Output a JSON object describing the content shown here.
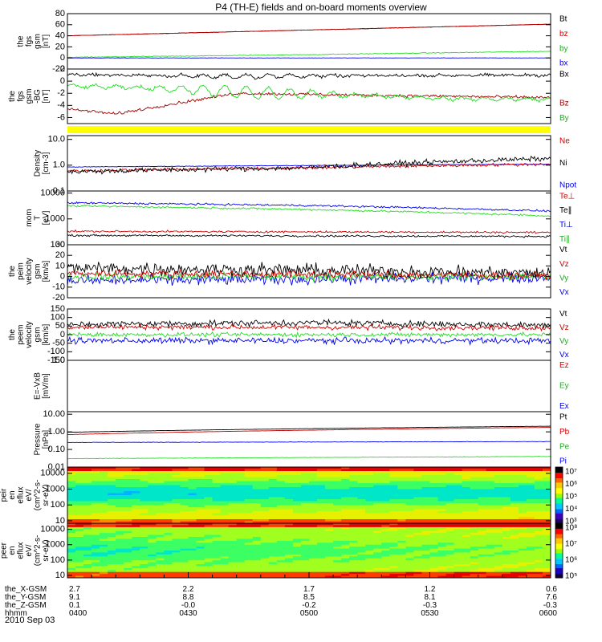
{
  "title": "P4 (TH-E) fields and on-board moments overview",
  "date": "2010 Sep 03",
  "colors": {
    "black": "#000000",
    "red": "#cc0000",
    "green": "#22dd22",
    "blue": "#0000ee",
    "yellow": "#ffff00",
    "darkred": "#a00000"
  },
  "chart_data": [
    {
      "type": "line",
      "ylabel": [
        "the",
        "fgs",
        "gsm",
        "[nT]"
      ],
      "ylim": [
        -20,
        80
      ],
      "yticks": [
        "80",
        "60",
        "40",
        "20",
        "0",
        "-20"
      ],
      "ytick_values": [
        80,
        60,
        40,
        20,
        0,
        -20
      ],
      "legend": [
        {
          "name": "Bt",
          "color": "#000000"
        },
        {
          "name": "bz",
          "color": "#cc0000"
        },
        {
          "name": "by",
          "color": "#22aa22"
        },
        {
          "name": "bx",
          "color": "#0000ee"
        }
      ],
      "series": [
        {
          "name": "Bt",
          "color": "#000000",
          "x": [
            0,
            1
          ],
          "y": [
            40,
            61
          ],
          "noise": 0.3
        },
        {
          "name": "bz",
          "color": "#cc0000",
          "x": [
            0,
            1
          ],
          "y": [
            40,
            61
          ],
          "noise": 0.3
        },
        {
          "name": "by",
          "color": "#22dd22",
          "x": [
            0,
            0.5,
            1
          ],
          "y": [
            1,
            6,
            12
          ],
          "noise": 0.6
        },
        {
          "name": "bx",
          "color": "#0000ee",
          "x": [
            0,
            1
          ],
          "y": [
            0,
            0
          ],
          "noise": 0.2
        }
      ]
    },
    {
      "type": "line",
      "ylabel": [
        "the",
        "fgs",
        "gsm",
        "-BG",
        "[nT]"
      ],
      "ylim": [
        -7,
        2
      ],
      "yticks": [
        "2",
        "0",
        "-2",
        "-4",
        "-6"
      ],
      "ytick_values": [
        2,
        0,
        -2,
        -4,
        -6
      ],
      "legend": [
        {
          "name": "Bx",
          "color": "#000000"
        },
        {
          "name": "",
          "color": "#ffffff"
        },
        {
          "name": "Bz",
          "color": "#a00000"
        },
        {
          "name": "By",
          "color": "#22aa22"
        }
      ],
      "series": [
        {
          "name": "Bx",
          "color": "#000000",
          "x": [
            0,
            0.3,
            0.6,
            1
          ],
          "y": [
            1.1,
            0.8,
            0.9,
            1.0
          ],
          "noise": 0.2,
          "wave": 0.3
        },
        {
          "name": "Bz",
          "color": "#a00000",
          "x": [
            0,
            0.1,
            0.2,
            0.35,
            0.6,
            0.8,
            1
          ],
          "y": [
            -4.6,
            -5.4,
            -4.0,
            -2.0,
            -2.3,
            -2.5,
            -2.7
          ],
          "noise": 0.2
        },
        {
          "name": "By",
          "color": "#22dd22",
          "x": [
            0,
            0.2,
            0.4,
            0.6,
            0.8,
            1
          ],
          "y": [
            -0.8,
            -1.2,
            -2.0,
            -2.3,
            -2.9,
            -3.0
          ],
          "noise": 0.2,
          "wave": 0.8
        }
      ],
      "bar": {
        "color": "#ffff00",
        "label_values": []
      }
    },
    {
      "type": "line",
      "scale": "log",
      "ylabel": [
        "Density",
        "[cm-3]"
      ],
      "ylim": [
        0.1,
        14
      ],
      "yticks": [
        "10.0",
        "1.0",
        "0.1"
      ],
      "ytick_values": [
        10,
        1,
        0.1
      ],
      "legend": [
        {
          "name": "Ne",
          "color": "#cc0000"
        },
        {
          "name": "Ni",
          "color": "#000000"
        },
        {
          "name": "Npot",
          "color": "#0000ee"
        }
      ],
      "series": [
        {
          "name": "Npot",
          "color": "#0000ee",
          "x": [
            0,
            1
          ],
          "y": [
            0.85,
            1.1
          ],
          "noise": 0.01
        },
        {
          "name": "Ne",
          "color": "#cc0000",
          "x": [
            0,
            0.5,
            1
          ],
          "y": [
            0.6,
            0.8,
            1.1
          ],
          "noise": 0.05
        },
        {
          "name": "Ni",
          "color": "#000000",
          "x": [
            0,
            0.5,
            1
          ],
          "y": [
            0.55,
            0.8,
            1.8
          ],
          "noise": 0.08
        }
      ]
    },
    {
      "type": "line",
      "scale": "log",
      "ylabel": [
        "mom",
        "T",
        "[eV]"
      ],
      "ylim": [
        100,
        12000
      ],
      "yticks": [
        "10000",
        "1000",
        "100"
      ],
      "ytick_values": [
        10000,
        1000,
        100
      ],
      "legend": [
        {
          "name": "Te⊥",
          "color": "#cc0000"
        },
        {
          "name": "Te∥",
          "color": "#000000"
        },
        {
          "name": "Ti⊥",
          "color": "#0000ee"
        },
        {
          "name": "Ti∥",
          "color": "#22aa22"
        }
      ],
      "series": [
        {
          "name": "Ti⊥",
          "color": "#0000ee",
          "x": [
            0,
            0.5,
            1
          ],
          "y": [
            4200,
            3300,
            2000
          ],
          "noise": 0.03
        },
        {
          "name": "Ti∥",
          "color": "#22dd22",
          "x": [
            0,
            0.5,
            1
          ],
          "y": [
            3200,
            2300,
            1300
          ],
          "noise": 0.03
        },
        {
          "name": "Te⊥",
          "color": "#cc0000",
          "x": [
            0,
            1
          ],
          "y": [
            330,
            300
          ],
          "noise": 0.03
        },
        {
          "name": "Te∥",
          "color": "#000000",
          "x": [
            0,
            1
          ],
          "y": [
            230,
            210
          ],
          "noise": 0.03
        }
      ]
    },
    {
      "type": "line",
      "ylabel": [
        "the",
        "peim",
        "velocity",
        "gsm",
        "[km/s]"
      ],
      "ylim": [
        -20,
        30
      ],
      "yticks": [
        "30",
        "20",
        "10",
        "0",
        "-10",
        "-20"
      ],
      "ytick_values": [
        30,
        20,
        10,
        0,
        -10,
        -20
      ],
      "legend": [
        {
          "name": "Vt",
          "color": "#000000"
        },
        {
          "name": "Vz",
          "color": "#cc0000"
        },
        {
          "name": "Vy",
          "color": "#22aa22"
        },
        {
          "name": "Vx",
          "color": "#0000ee"
        }
      ],
      "series": [
        {
          "name": "Vx",
          "color": "#0000ee",
          "x": [
            0,
            1
          ],
          "y": [
            -4,
            -1
          ],
          "noise": 4
        },
        {
          "name": "Vy",
          "color": "#22dd22",
          "x": [
            0,
            1
          ],
          "y": [
            0,
            0
          ],
          "noise": 3
        },
        {
          "name": "Vt",
          "color": "#000000",
          "x": [
            0,
            0.5,
            1
          ],
          "y": [
            8,
            6,
            3
          ],
          "noise": 5
        },
        {
          "name": "Vz",
          "color": "#cc0000",
          "x": [
            0,
            1
          ],
          "y": [
            3,
            1
          ],
          "noise": 3
        }
      ]
    },
    {
      "type": "line",
      "ylabel": [
        "the",
        "peem",
        "velocity",
        "gsm",
        "[km/s]"
      ],
      "ylim": [
        -150,
        150
      ],
      "yticks": [
        "150",
        "100",
        "50",
        "0",
        "-50",
        "-100",
        "-150"
      ],
      "ytick_values": [
        150,
        100,
        50,
        0,
        -50,
        -100,
        -150
      ],
      "legend": [
        {
          "name": "Vt",
          "color": "#000000"
        },
        {
          "name": "Vz",
          "color": "#cc0000"
        },
        {
          "name": "Vy",
          "color": "#22aa22"
        },
        {
          "name": "Vx",
          "color": "#0000ee"
        }
      ],
      "series": [
        {
          "name": "Vx",
          "color": "#0000ee",
          "x": [
            0,
            1
          ],
          "y": [
            -35,
            -35
          ],
          "noise": 14
        },
        {
          "name": "Vy",
          "color": "#22dd22",
          "x": [
            0,
            1
          ],
          "y": [
            0,
            0
          ],
          "noise": 10
        },
        {
          "name": "Vt",
          "color": "#000000",
          "x": [
            0,
            0.5,
            1
          ],
          "y": [
            60,
            70,
            55
          ],
          "noise": 15
        },
        {
          "name": "Vz",
          "color": "#cc0000",
          "x": [
            0,
            1
          ],
          "y": [
            45,
            40
          ],
          "noise": 12
        }
      ]
    },
    {
      "type": "line",
      "ylabel": [
        "E=-VxB",
        "[mV/m]"
      ],
      "ylim": [
        -1,
        1
      ],
      "yticks": [
        "1.0"
      ],
      "ytick_values": [
        1
      ],
      "legend": [
        {
          "name": "Ez",
          "color": "#cc0000"
        },
        {
          "name": "Ey",
          "color": "#22aa22"
        },
        {
          "name": "Ex",
          "color": "#0000ee"
        }
      ],
      "series": []
    },
    {
      "type": "line",
      "scale": "log",
      "ylabel": [
        "Pressure",
        "[nPa]"
      ],
      "ylim": [
        0.01,
        14
      ],
      "yticks": [
        "10.00",
        "1.00",
        "0.10",
        "0.01"
      ],
      "ytick_values": [
        10,
        1,
        0.1,
        0.01
      ],
      "legend": [
        {
          "name": "Pt",
          "color": "#000000"
        },
        {
          "name": "Pb",
          "color": "#cc0000"
        },
        {
          "name": "Pe",
          "color": "#22aa22"
        },
        {
          "name": "Pi",
          "color": "#0000ee"
        }
      ],
      "series": [
        {
          "name": "Pi",
          "color": "#0000ee",
          "x": [
            0,
            1
          ],
          "y": [
            0.25,
            0.28
          ],
          "noise": 0.01
        },
        {
          "name": "Pe",
          "color": "#22dd22",
          "x": [
            0,
            1
          ],
          "y": [
            0.03,
            0.04
          ],
          "noise": 0.01
        },
        {
          "name": "Pb",
          "color": "#cc0000",
          "x": [
            0,
            1
          ],
          "y": [
            0.7,
            1.8
          ],
          "noise": 0.005
        },
        {
          "name": "Pt",
          "color": "#000000",
          "x": [
            0,
            1
          ],
          "y": [
            0.95,
            2.1
          ],
          "noise": 0.005
        }
      ]
    },
    {
      "type": "heatmap",
      "scale": "log",
      "ylabel": [
        "the",
        "peir",
        "en",
        "eflux",
        "eV/",
        "(cm^2-s-",
        "sr-eV)"
      ],
      "ylim": [
        7,
        25000
      ],
      "yticks": [
        "10000",
        "1000",
        "100",
        "10"
      ],
      "ytick_values": [
        10000,
        1000,
        100,
        10
      ],
      "colorbar": [
        "10⁷",
        "10⁶",
        "10⁵",
        "10⁴",
        "10³"
      ],
      "variant": "ion"
    },
    {
      "type": "heatmap",
      "scale": "log",
      "ylabel": [
        "the",
        "peer",
        "en",
        "eflux",
        "eV/",
        "(cm^2-s-",
        "sr-eV)"
      ],
      "ylim": [
        7,
        25000
      ],
      "yticks": [
        "10000",
        "1000",
        "100",
        "10"
      ],
      "ytick_values": [
        10000,
        1000,
        100,
        10
      ],
      "colorbar": [
        "10⁸",
        "10⁷",
        "10⁶",
        "10⁵"
      ],
      "variant": "electron"
    }
  ],
  "x_axis": {
    "labels": [
      "the_X-GSM",
      "the_Y-GSM",
      "the_Z-GSM",
      "hhmm"
    ],
    "columns": [
      [
        "2.7",
        "9.1",
        "0.1",
        "0400"
      ],
      [
        "2.2",
        "8.8",
        "-0.0",
        "0430"
      ],
      [
        "1.7",
        "8.5",
        "-0.2",
        "0500"
      ],
      [
        "1.2",
        "8.1",
        "-0.3",
        "0530"
      ],
      [
        "0.6",
        "7.6",
        "-0.3",
        "0600"
      ]
    ]
  }
}
